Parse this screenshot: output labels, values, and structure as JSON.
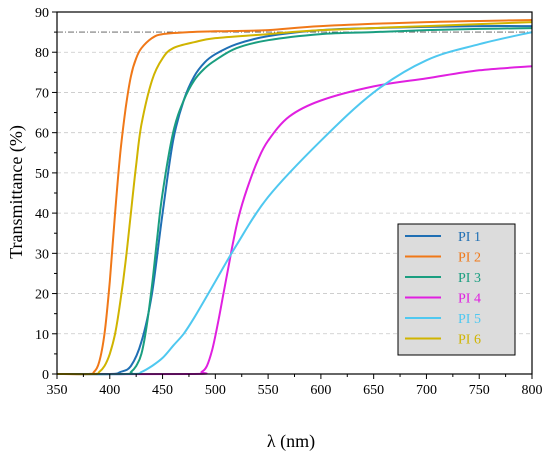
{
  "chart_data": {
    "type": "line",
    "xlabel": "λ (nm)",
    "ylabel": "Transmittance (%)",
    "xlim": [
      350,
      800
    ],
    "ylim": [
      0,
      90
    ],
    "xticks": [
      350,
      400,
      450,
      500,
      550,
      600,
      650,
      700,
      750,
      800
    ],
    "yticks": [
      0,
      10,
      20,
      30,
      40,
      50,
      60,
      70,
      80,
      90
    ],
    "grid": "horizontal-dashed",
    "reference_line": {
      "y": 85,
      "style": "dash-dot"
    },
    "legend_position": "bottom-right",
    "series": [
      {
        "name": "PI 1",
        "color": "#1f6fb4",
        "x": [
          350,
          400,
          410,
          420,
          430,
          440,
          450,
          460,
          470,
          480,
          490,
          500,
          520,
          550,
          600,
          650,
          700,
          750,
          800
        ],
        "y": [
          0,
          0,
          0.5,
          2,
          8,
          20,
          40,
          58,
          68,
          74,
          77.5,
          79.5,
          82,
          84,
          85.5,
          86,
          86.3,
          86.5,
          86.5
        ]
      },
      {
        "name": "PI 2",
        "color": "#f07818",
        "x": [
          350,
          380,
          385,
          390,
          395,
          400,
          405,
          410,
          415,
          420,
          425,
          430,
          440,
          450,
          475,
          500,
          550,
          600,
          700,
          800
        ],
        "y": [
          0,
          0,
          0.5,
          3,
          10,
          23,
          40,
          55,
          66,
          74,
          78.5,
          81,
          83.5,
          84.5,
          85,
          85.2,
          85.5,
          86.5,
          87.5,
          88
        ]
      },
      {
        "name": "PI 3",
        "color": "#1a9e80",
        "x": [
          350,
          415,
          420,
          425,
          430,
          435,
          440,
          445,
          450,
          460,
          470,
          480,
          490,
          500,
          520,
          550,
          600,
          650,
          700,
          750,
          800
        ],
        "y": [
          0,
          0,
          0.5,
          2,
          5,
          12,
          22,
          34,
          45,
          60,
          68,
          73,
          76,
          78,
          81,
          83,
          84.5,
          85,
          85.5,
          85.8,
          86
        ]
      },
      {
        "name": "PI 4",
        "color": "#e020e0",
        "x": [
          350,
          480,
          487,
          492,
          497,
          502,
          507,
          512,
          517,
          522,
          530,
          540,
          550,
          570,
          600,
          650,
          700,
          750,
          800
        ],
        "y": [
          0,
          0,
          0.5,
          2,
          6,
          12,
          19,
          26,
          33,
          39,
          46,
          53,
          58,
          64,
          68,
          71.5,
          73.5,
          75.5,
          76.5
        ]
      },
      {
        "name": "PI 5",
        "color": "#4fc8f0",
        "x": [
          350,
          420,
          430,
          440,
          450,
          460,
          470,
          480,
          500,
          520,
          550,
          600,
          650,
          700,
          750,
          800
        ],
        "y": [
          0,
          0,
          0.5,
          2,
          4,
          7,
          10,
          14,
          23,
          32,
          44,
          58,
          70,
          78,
          82,
          85
        ]
      },
      {
        "name": "PI 6",
        "color": "#d0b400",
        "x": [
          350,
          385,
          390,
          395,
          400,
          405,
          410,
          415,
          420,
          425,
          430,
          440,
          450,
          460,
          480,
          500,
          550,
          600,
          700,
          800
        ],
        "y": [
          0,
          0,
          0.5,
          2,
          5,
          10,
          18,
          28,
          40,
          52,
          62,
          73,
          78.5,
          81,
          82.5,
          83.5,
          84.5,
          85.5,
          86.5,
          87.5
        ]
      }
    ]
  }
}
